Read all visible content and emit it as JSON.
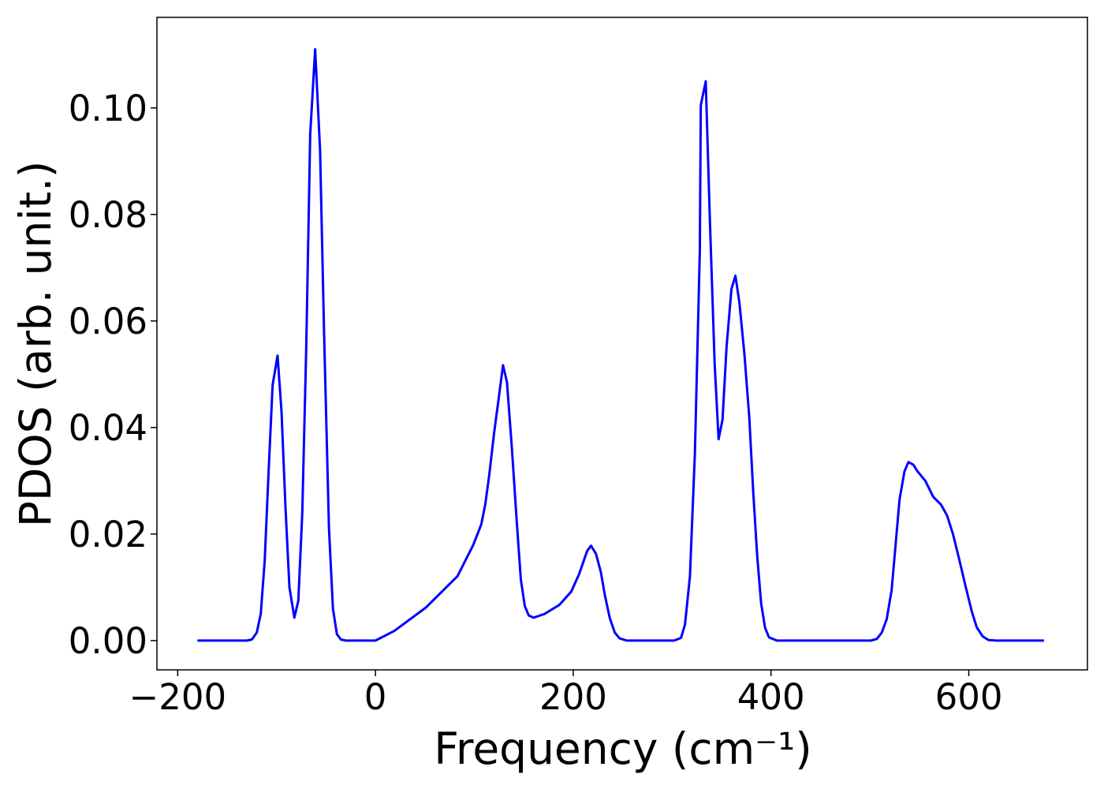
{
  "chart_data": {
    "type": "line",
    "xlabel": "Frequency (cm⁻¹)",
    "ylabel": "PDOS (arb. unit.)",
    "xlim": [
      -221,
      720
    ],
    "ylim": [
      -0.0055,
      0.117
    ],
    "xticks": [
      {
        "value": -200,
        "label": "−200"
      },
      0,
      200,
      400,
      600
    ],
    "yticks": [
      {
        "value": 0,
        "label": "0.00"
      },
      {
        "value": 0.02,
        "label": "0.02"
      },
      {
        "value": 0.04,
        "label": "0.04"
      },
      {
        "value": 0.06,
        "label": "0.06"
      },
      {
        "value": 0.08,
        "label": "0.08"
      },
      {
        "value": 0.1,
        "label": "0.10"
      }
    ],
    "grid": false,
    "series": [
      {
        "color": "#0000ff",
        "x": [
          -180,
          -130,
          -125,
          -120,
          -116,
          -112,
          -108,
          -104,
          -99,
          -95,
          -91,
          -87,
          -82,
          -78,
          -74,
          -70,
          -66,
          -61,
          -56,
          -52,
          -47,
          -43,
          -39,
          -35,
          -30,
          0,
          19,
          51,
          83,
          99,
          107,
          111,
          115,
          120,
          125,
          129,
          133,
          138,
          143,
          147,
          151,
          155,
          160,
          171,
          186,
          198,
          206,
          214,
          218,
          223,
          228,
          232,
          237,
          242,
          247,
          254,
          302,
          309,
          313,
          318,
          323,
          328,
          329,
          334,
          338,
          343,
          347,
          351,
          355,
          360,
          364,
          368,
          373,
          378,
          382,
          386,
          390,
          394,
          398,
          406,
          501,
          507,
          512,
          517,
          522,
          526,
          530,
          535,
          539,
          544,
          548,
          556,
          564,
          572,
          578,
          584,
          590,
          597,
          603,
          608,
          614,
          620,
          628,
          676
        ],
        "values": [
          0,
          0,
          0.0002,
          0.0015,
          0.005,
          0.015,
          0.032,
          0.048,
          0.0535,
          0.043,
          0.025,
          0.01,
          0.0043,
          0.0075,
          0.024,
          0.055,
          0.095,
          0.111,
          0.092,
          0.058,
          0.021,
          0.006,
          0.0012,
          0.0002,
          0,
          0,
          0.0018,
          0.0062,
          0.0121,
          0.018,
          0.0218,
          0.0255,
          0.031,
          0.039,
          0.046,
          0.0517,
          0.0485,
          0.036,
          0.022,
          0.0115,
          0.0065,
          0.0047,
          0.0043,
          0.005,
          0.0067,
          0.0092,
          0.0125,
          0.0168,
          0.0178,
          0.0163,
          0.0128,
          0.0085,
          0.0042,
          0.0015,
          0.0004,
          0,
          0,
          0.0005,
          0.003,
          0.012,
          0.035,
          0.073,
          0.1005,
          0.105,
          0.08,
          0.052,
          0.0378,
          0.0415,
          0.055,
          0.066,
          0.0685,
          0.0635,
          0.054,
          0.042,
          0.028,
          0.016,
          0.007,
          0.0024,
          0.0006,
          0,
          0,
          0.0003,
          0.0015,
          0.004,
          0.0095,
          0.018,
          0.0265,
          0.0318,
          0.0335,
          0.033,
          0.0318,
          0.03,
          0.027,
          0.0255,
          0.0235,
          0.02,
          0.0155,
          0.01,
          0.0055,
          0.0025,
          0.0008,
          0.0001,
          0,
          0
        ]
      }
    ]
  }
}
